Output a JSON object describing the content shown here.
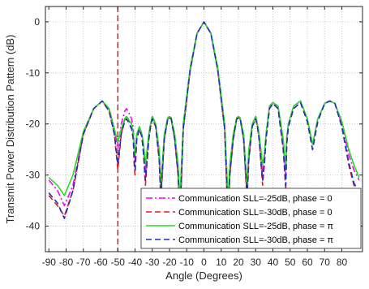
{
  "chart_data": {
    "type": "line",
    "xlabel": "Angle (Degrees)",
    "ylabel": "Transmit Power Distribution Pattern (dB)",
    "xlim": [
      -92,
      92
    ],
    "ylim": [
      -45,
      3
    ],
    "xticks": [
      -90,
      -80,
      -70,
      -60,
      -50,
      -40,
      -30,
      -20,
      -10,
      0,
      10,
      20,
      30,
      40,
      50,
      60,
      70,
      80
    ],
    "xtick_labels": [
      "-90",
      "-80",
      "-70",
      "-60",
      "-50",
      "-40",
      "-30",
      "-20",
      "-10",
      "0",
      "10",
      "20",
      "30",
      "40",
      "50",
      "60",
      "70",
      "80"
    ],
    "yticks": [
      0,
      -10,
      -20,
      -30,
      -40
    ],
    "ytick_labels": [
      "0",
      "-10",
      "-20",
      "-30",
      "-40"
    ],
    "grid": true,
    "legend_position": "bottom-right",
    "vline": {
      "x": -50,
      "color": "#dd0000",
      "style": "dashed"
    },
    "series": [
      {
        "name": "Communication SLL=-25dB, phase = 0",
        "color": "#ff00ff",
        "style": "dashdot",
        "x": [
          -90,
          -85,
          -81,
          -76,
          -70,
          -64,
          -59,
          -55,
          -52,
          -50,
          -48,
          -46,
          -45,
          -44,
          -42,
          -41,
          -40.5,
          -40,
          -39,
          -37.5,
          -36,
          -35,
          -34,
          -32,
          -31,
          -30,
          -28,
          -26,
          -25.5,
          -25,
          -23,
          -21,
          -20,
          -19,
          -17,
          -15,
          -14,
          -12,
          -8,
          -4,
          0,
          4,
          8,
          12,
          14,
          15,
          17,
          19,
          20,
          21,
          23,
          25,
          25.5,
          26,
          28,
          30,
          31,
          32,
          34,
          35,
          36,
          38,
          40,
          43,
          46,
          47.5,
          48,
          49,
          52,
          56,
          60,
          63,
          66,
          70,
          73,
          76,
          80,
          84,
          87,
          90
        ],
        "y": [
          -31,
          -33,
          -36,
          -32,
          -22,
          -17,
          -15.5,
          -17,
          -21,
          -25,
          -20,
          -17.5,
          -17,
          -17.5,
          -19,
          -21,
          -25,
          -27,
          -22,
          -20.5,
          -22,
          -25,
          -30,
          -22,
          -20,
          -18.5,
          -20,
          -26,
          -29,
          -33,
          -22,
          -18.8,
          -18.5,
          -18.8,
          -22,
          -28,
          -36,
          -20,
          -9,
          -2.2,
          0,
          -2.2,
          -9,
          -20,
          -36,
          -28,
          -22,
          -18.8,
          -18.5,
          -18.8,
          -22,
          -33,
          -29,
          -26,
          -20,
          -18.5,
          -20,
          -22,
          -30,
          -27,
          -22,
          -16.5,
          -15.8,
          -16.5,
          -24,
          -30,
          -23,
          -20,
          -16.5,
          -15.5,
          -19,
          -24,
          -19,
          -16,
          -15.5,
          -16,
          -20,
          -26,
          -29,
          -31
        ]
      },
      {
        "name": "Communication SLL=-30dB, phase = 0",
        "color": "#e41a1c",
        "style": "dashed",
        "x": [
          -90,
          -85,
          -81,
          -76,
          -70,
          -64,
          -59,
          -55,
          -52,
          -50,
          -48,
          -46,
          -45,
          -44,
          -42,
          -41,
          -40.5,
          -40,
          -39,
          -37.5,
          -36,
          -35,
          -34,
          -32,
          -31,
          -30,
          -28,
          -26,
          -25.5,
          -25,
          -23,
          -21,
          -20,
          -19,
          -17,
          -15,
          -14,
          -12,
          -8,
          -4,
          0,
          4,
          8,
          12,
          14,
          15,
          17,
          19,
          20,
          21,
          23,
          25,
          25.5,
          26,
          28,
          30,
          31,
          32,
          34,
          35,
          36,
          38,
          40,
          43,
          46,
          47.5,
          48,
          49,
          52,
          56,
          60,
          63,
          66,
          70,
          73,
          76,
          80,
          84,
          87,
          90
        ],
        "y": [
          -34,
          -36,
          -38,
          -33,
          -22,
          -17,
          -15.5,
          -17.5,
          -22,
          -29,
          -22,
          -19,
          -18.5,
          -19,
          -20.5,
          -23,
          -28,
          -30,
          -23,
          -21,
          -22.5,
          -26,
          -32,
          -23,
          -20.5,
          -19,
          -20.5,
          -27,
          -31,
          -35,
          -23,
          -19,
          -18.8,
          -19,
          -23,
          -30,
          -40,
          -21,
          -9.5,
          -2.3,
          0,
          -2.3,
          -9.5,
          -21,
          -40,
          -30,
          -23,
          -19,
          -18.8,
          -19,
          -23,
          -35,
          -31,
          -27,
          -20.5,
          -19,
          -20.5,
          -23,
          -32,
          -28,
          -23,
          -17,
          -16,
          -17,
          -25,
          -33,
          -24,
          -20.5,
          -17,
          -15.8,
          -19.5,
          -25,
          -19.5,
          -16,
          -15.5,
          -16,
          -20.5,
          -28,
          -32,
          -34
        ]
      },
      {
        "name": "Communication SLL=-25dB, phase = π",
        "color": "#22dd22",
        "style": "solid",
        "x": [
          -90,
          -85,
          -81,
          -76,
          -70,
          -64,
          -59,
          -55,
          -52,
          -50,
          -48,
          -46,
          -45,
          -44,
          -42,
          -41,
          -40.5,
          -40,
          -39,
          -37.5,
          -36,
          -35,
          -34,
          -32,
          -31,
          -30,
          -28,
          -26,
          -25.5,
          -25,
          -23,
          -21,
          -20,
          -19,
          -17,
          -15,
          -14,
          -12,
          -8,
          -4,
          0,
          4,
          8,
          12,
          14,
          15,
          17,
          19,
          20,
          21,
          23,
          25,
          25.5,
          26,
          28,
          30,
          31,
          32,
          34,
          35,
          36,
          38,
          40,
          43,
          46,
          47.5,
          48,
          49,
          52,
          56,
          60,
          63,
          66,
          70,
          73,
          76,
          80,
          84,
          87,
          90
        ],
        "y": [
          -30.5,
          -32,
          -34,
          -30,
          -21.5,
          -17,
          -15.5,
          -17,
          -21,
          -23.5,
          -21,
          -19,
          -18.5,
          -19,
          -20,
          -22,
          -24,
          -26,
          -22,
          -20.5,
          -22,
          -24,
          -28,
          -22,
          -20,
          -18.5,
          -20,
          -25,
          -28,
          -32,
          -22,
          -18.8,
          -18.5,
          -18.8,
          -22,
          -28,
          -35,
          -20,
          -9,
          -2.2,
          0,
          -2.2,
          -9,
          -20,
          -35,
          -28,
          -22,
          -18.8,
          -18.5,
          -18.8,
          -22,
          -32,
          -28,
          -25,
          -20,
          -18.5,
          -20,
          -22,
          -28,
          -26,
          -22,
          -16.5,
          -15.8,
          -16.5,
          -23,
          -29,
          -22.5,
          -20,
          -16.5,
          -15.5,
          -19,
          -24,
          -19,
          -16,
          -15.5,
          -16,
          -19.5,
          -25,
          -28,
          -30.5
        ]
      },
      {
        "name": "Communication SLL=-30dB, phase = π",
        "color": "#1f2fbf",
        "style": "dashed",
        "x": [
          -90,
          -85,
          -81,
          -76,
          -70,
          -64,
          -59,
          -55,
          -52,
          -50,
          -48,
          -46,
          -45,
          -44,
          -42,
          -41,
          -40.5,
          -40,
          -39,
          -37.5,
          -36,
          -35,
          -34,
          -32,
          -31,
          -30,
          -28,
          -26,
          -25.5,
          -25,
          -23,
          -21,
          -20,
          -19,
          -17,
          -15,
          -14,
          -12,
          -8,
          -4,
          0,
          4,
          8,
          12,
          14,
          15,
          17,
          19,
          20,
          21,
          23,
          25,
          25.5,
          26,
          28,
          30,
          31,
          32,
          34,
          35,
          36,
          38,
          40,
          43,
          46,
          47.5,
          48,
          49,
          52,
          56,
          60,
          63,
          66,
          70,
          73,
          76,
          80,
          84,
          87,
          90
        ],
        "y": [
          -33.5,
          -35.5,
          -38.5,
          -33,
          -22,
          -17,
          -15.5,
          -17.5,
          -22,
          -28,
          -22,
          -19.5,
          -19,
          -19.5,
          -21,
          -23,
          -27,
          -29,
          -23,
          -21,
          -22.5,
          -26,
          -31,
          -23,
          -20.5,
          -19,
          -20.5,
          -27,
          -31,
          -34,
          -23,
          -19,
          -18.8,
          -19,
          -23,
          -30,
          -39,
          -21,
          -9.5,
          -2.3,
          0,
          -2.3,
          -9.5,
          -21,
          -39,
          -30,
          -23,
          -19,
          -18.8,
          -19,
          -23,
          -34,
          -31,
          -27,
          -20.5,
          -19,
          -20.5,
          -23,
          -31,
          -28,
          -23,
          -17,
          -16,
          -17,
          -25,
          -32,
          -24,
          -20.5,
          -17,
          -15.8,
          -19.5,
          -25,
          -19.5,
          -16,
          -15.5,
          -16,
          -20.5,
          -27.5,
          -31.5,
          -33.5
        ]
      }
    ]
  }
}
